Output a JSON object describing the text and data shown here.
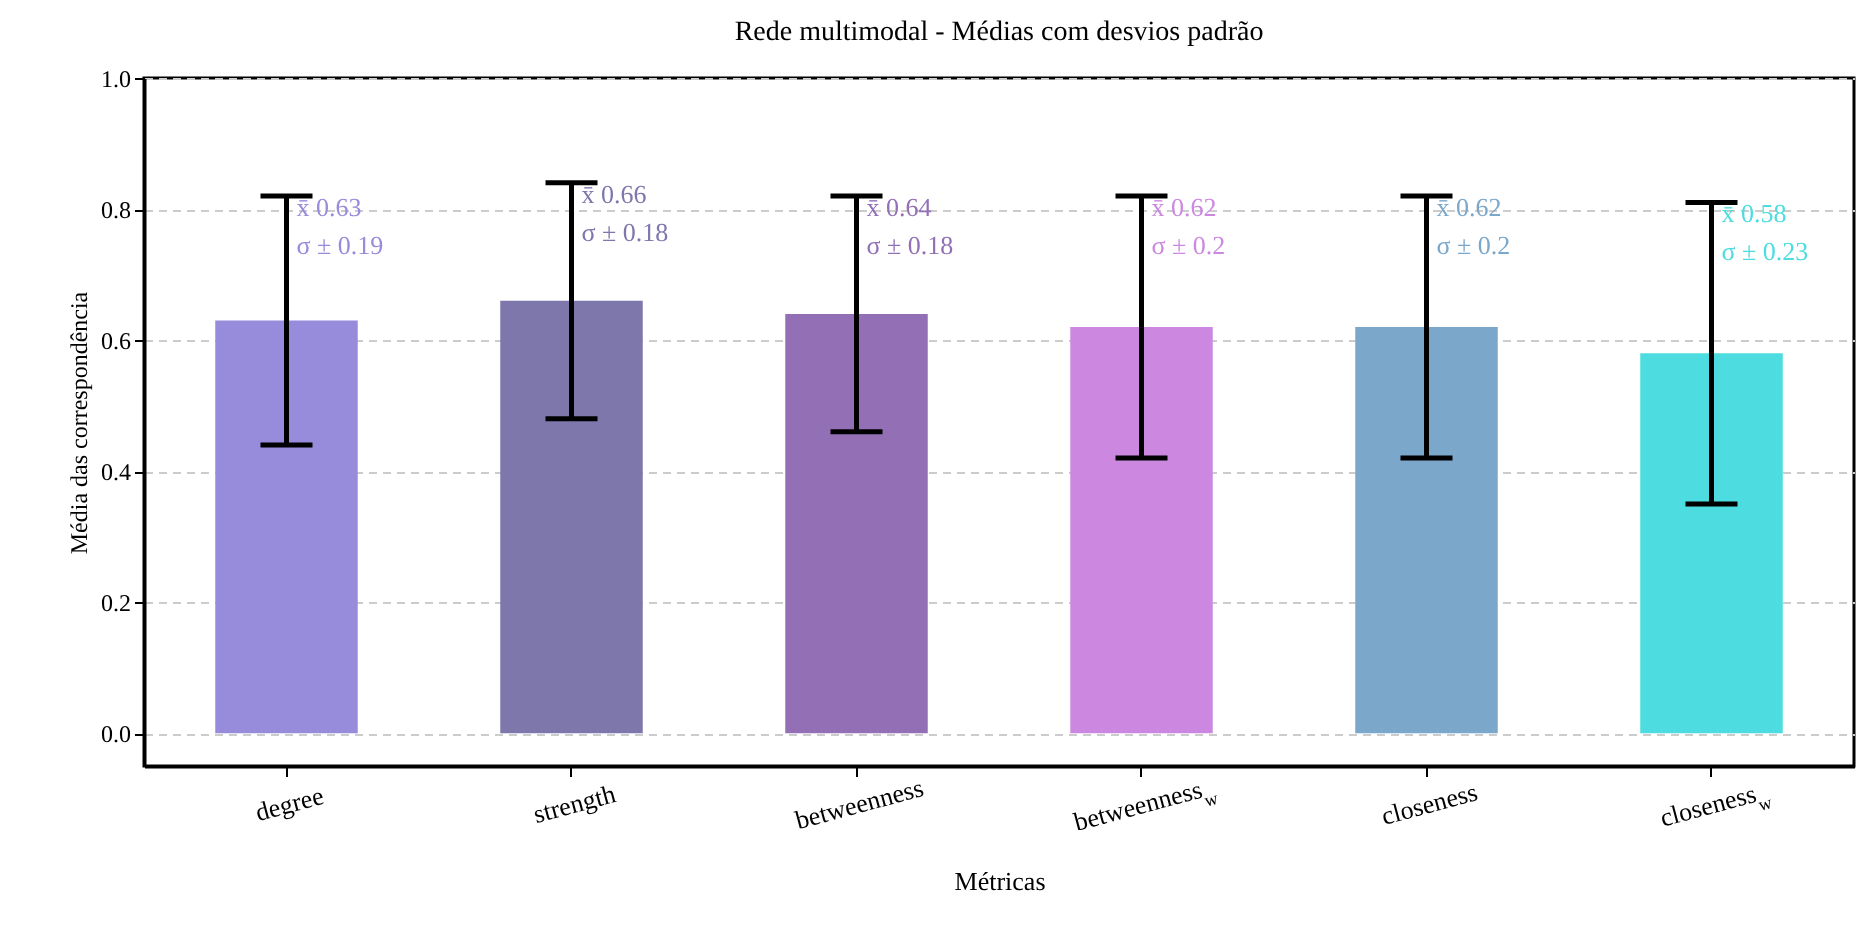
{
  "chart_data": {
    "type": "bar",
    "title": "Rede multimodal - Médias com desvios padrão",
    "xlabel": "Métricas",
    "ylabel": "Média das correspondência",
    "categories": [
      "degree",
      "strength",
      "betweenness",
      "betweenness$_{w}$",
      "closeness",
      "closeness$_{w}$"
    ],
    "values": [
      0.63,
      0.66,
      0.64,
      0.62,
      0.62,
      0.58
    ],
    "errors": [
      0.19,
      0.18,
      0.18,
      0.2,
      0.2,
      0.23
    ],
    "colors": [
      "#978bdb",
      "#7e77ab",
      "#9370b6",
      "#cc88e0",
      "#7ba7ca",
      "#4ddcdf"
    ],
    "ylim": [
      -0.05,
      1.0
    ],
    "yticks": [
      {
        "value": 0,
        "label": "0.0"
      },
      0.2,
      0.4,
      0.6,
      0.8,
      {
        "value": 1,
        "label": "1.0"
      }
    ],
    "grid": "y",
    "annotations": [
      {
        "text": "x̄ 0.63\nσ ± 0.19",
        "x": "degree",
        "y": 0.82
      },
      {
        "text": "x̄ 0.66\nσ ± 0.18",
        "x": "strength",
        "y": 0.84
      },
      {
        "text": "x̄ 0.64\nσ ± 0.18",
        "x": "betweenness",
        "y": 0.82
      },
      {
        "text": "x̄ 0.62\nσ ± 0.2",
        "x": "betweenness$_{w}$",
        "y": 0.82
      },
      {
        "text": "x̄ 0.62\nσ ± 0.2",
        "x": "closeness",
        "y": 0.82
      },
      {
        "text": "x̄ 0.58\nσ ± 0.23",
        "x": "closeness$_{w}$",
        "y": 0.81
      }
    ]
  }
}
